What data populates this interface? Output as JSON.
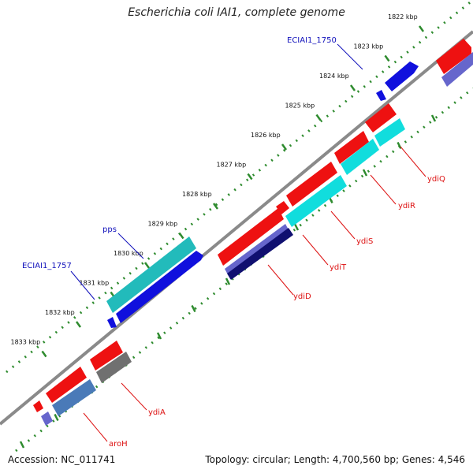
{
  "title": "Escherichia coli IAI1, complete genome",
  "accession": "Accession: NC_011741",
  "topology": "Topology: circular; Length: 4,700,560 bp; Genes: 4,546",
  "kbp_ticks": [
    "1822 kbp",
    "1823 kbp",
    "1824 kbp",
    "1825 kbp",
    "1826 kbp",
    "1827 kbp",
    "1828 kbp",
    "1829 kbp",
    "1830 kbp",
    "1831 kbp",
    "1832 kbp",
    "1833 kbp"
  ],
  "colors": {
    "backbone": "#8a8a8a",
    "ruler_outer": "#2e8b2e",
    "ruler_inner": "#2e8b2e",
    "red": "#ee1111",
    "blue": "#1010dd",
    "cyan": "#11dddd",
    "teal": "#22bbbb",
    "slate": "#6666cc",
    "navy": "#101070",
    "steel": "#4a7ab8",
    "gray": "#707070",
    "label_red": "#dd1111",
    "label_blue": "#1010bb"
  },
  "labels": {
    "ydiQ": "ydiQ",
    "ydiR": "ydiR",
    "ydiS": "ydiS",
    "ydiT": "ydiT",
    "ydiD": "ydiD",
    "ydiA": "ydiA",
    "aroH": "aroH",
    "pps": "pps",
    "ECIAI1_1750": "ECIAI1_1750",
    "ECIAI1_1757": "ECIAI1_1757"
  }
}
